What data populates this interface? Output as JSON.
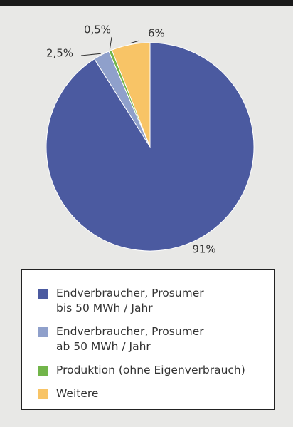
{
  "chart_data": {
    "type": "pie",
    "categories": [
      "Endverbraucher, Prosumer\nbis 50 MWh / Jahr",
      "Endverbraucher, Prosumer\nab 50 MWh / Jahr",
      "Produktion (ohne Eigenverbrauch)",
      "Weitere"
    ],
    "values": [
      91,
      2.5,
      0.5,
      6
    ],
    "value_labels": [
      "91%",
      "2,5%",
      "0,5%",
      "6%"
    ],
    "colors": [
      "#4b5aa0",
      "#8fa0cb",
      "#72b54a",
      "#f8c466"
    ],
    "start_angle": "top",
    "direction": "clockwise",
    "legend": "bottom"
  }
}
